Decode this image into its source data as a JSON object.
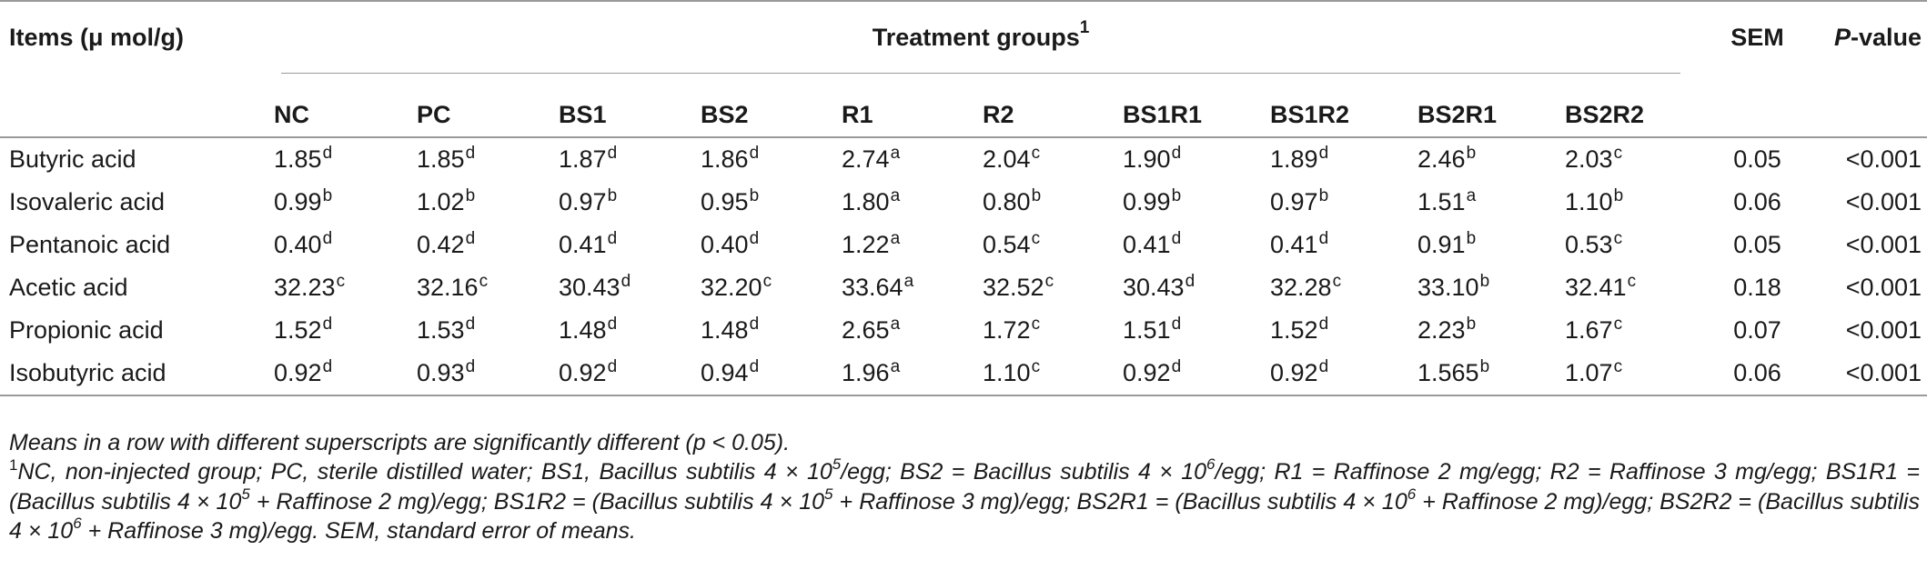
{
  "table": {
    "header": {
      "items_label": "Items (μ mol/g)",
      "group_label": "Treatment groups",
      "group_label_sup": "1",
      "sem_label": "SEM",
      "p_label_italic": "P",
      "p_label_rest": "-value",
      "groups": [
        "NC",
        "PC",
        "BS1",
        "BS2",
        "R1",
        "R2",
        "BS1R1",
        "BS1R2",
        "BS2R1",
        "BS2R2"
      ]
    },
    "rows": [
      {
        "item": "Butyric acid",
        "values": [
          [
            "1.85",
            "d"
          ],
          [
            "1.85",
            "d"
          ],
          [
            "1.87",
            "d"
          ],
          [
            "1.86",
            "d"
          ],
          [
            "2.74",
            "a"
          ],
          [
            "2.04",
            "c"
          ],
          [
            "1.90",
            "d"
          ],
          [
            "1.89",
            "d"
          ],
          [
            "2.46",
            "b"
          ],
          [
            "2.03",
            "c"
          ]
        ],
        "sem": "0.05",
        "p": "<0.001"
      },
      {
        "item": "Isovaleric acid",
        "values": [
          [
            "0.99",
            "b"
          ],
          [
            "1.02",
            "b"
          ],
          [
            "0.97",
            "b"
          ],
          [
            "0.95",
            "b"
          ],
          [
            "1.80",
            "a"
          ],
          [
            "0.80",
            "b"
          ],
          [
            "0.99",
            "b"
          ],
          [
            "0.97",
            "b"
          ],
          [
            "1.51",
            "a"
          ],
          [
            "1.10",
            "b"
          ]
        ],
        "sem": "0.06",
        "p": "<0.001"
      },
      {
        "item": "Pentanoic acid",
        "values": [
          [
            "0.40",
            "d"
          ],
          [
            "0.42",
            "d"
          ],
          [
            "0.41",
            "d"
          ],
          [
            "0.40",
            "d"
          ],
          [
            "1.22",
            "a"
          ],
          [
            "0.54",
            "c"
          ],
          [
            "0.41",
            "d"
          ],
          [
            "0.41",
            "d"
          ],
          [
            "0.91",
            "b"
          ],
          [
            "0.53",
            "c"
          ]
        ],
        "sem": "0.05",
        "p": "<0.001"
      },
      {
        "item": "Acetic acid",
        "values": [
          [
            "32.23",
            "c"
          ],
          [
            "32.16",
            "c"
          ],
          [
            "30.43",
            "d"
          ],
          [
            "32.20",
            "c"
          ],
          [
            "33.64",
            "a"
          ],
          [
            "32.52",
            "c"
          ],
          [
            "30.43",
            "d"
          ],
          [
            "32.28",
            "c"
          ],
          [
            "33.10",
            "b"
          ],
          [
            "32.41",
            "c"
          ]
        ],
        "sem": "0.18",
        "p": "<0.001"
      },
      {
        "item": "Propionic acid",
        "values": [
          [
            "1.52",
            "d"
          ],
          [
            "1.53",
            "d"
          ],
          [
            "1.48",
            "d"
          ],
          [
            "1.48",
            "d"
          ],
          [
            "2.65",
            "a"
          ],
          [
            "1.72",
            "c"
          ],
          [
            "1.51",
            "d"
          ],
          [
            "1.52",
            "d"
          ],
          [
            "2.23",
            "b"
          ],
          [
            "1.67",
            "c"
          ]
        ],
        "sem": "0.07",
        "p": "<0.001"
      },
      {
        "item": "Isobutyric acid",
        "values": [
          [
            "0.92",
            "d"
          ],
          [
            "0.93",
            "d"
          ],
          [
            "0.92",
            "d"
          ],
          [
            "0.94",
            "d"
          ],
          [
            "1.96",
            "a"
          ],
          [
            "1.10",
            "c"
          ],
          [
            "0.92",
            "d"
          ],
          [
            "0.92",
            "d"
          ],
          [
            "1.565",
            "b"
          ],
          [
            "1.07",
            "c"
          ]
        ],
        "sem": "0.06",
        "p": "<0.001"
      }
    ]
  },
  "notes": {
    "line1": "Means in a row with different superscripts are significantly different (p < 0.05).",
    "footnote_marker": "1",
    "footnote_parts": [
      "NC, non-injected group; PC, sterile distilled water; BS1, Bacillus subtilis 4 × 10",
      "5",
      "/egg; BS2 = Bacillus subtilis 4 × 10",
      "6",
      "/egg; R1 = Raffinose 2 mg/egg; R2 = Raffinose 3 mg/egg; BS1R1 = (Bacillus subtilis 4 × 10",
      "5",
      " + Raffinose 2 mg)/egg; BS1R2 = (Bacillus subtilis 4 × 10",
      "5",
      " + Raffinose 3 mg)/egg; BS2R1 = (Bacillus subtilis 4 × 10",
      "6",
      " + Raffinose 2 mg)/egg; BS2R2 = (Bacillus subtilis 4 × 10",
      "6",
      " + Raffinose 3 mg)/egg. SEM, standard error of means."
    ]
  }
}
